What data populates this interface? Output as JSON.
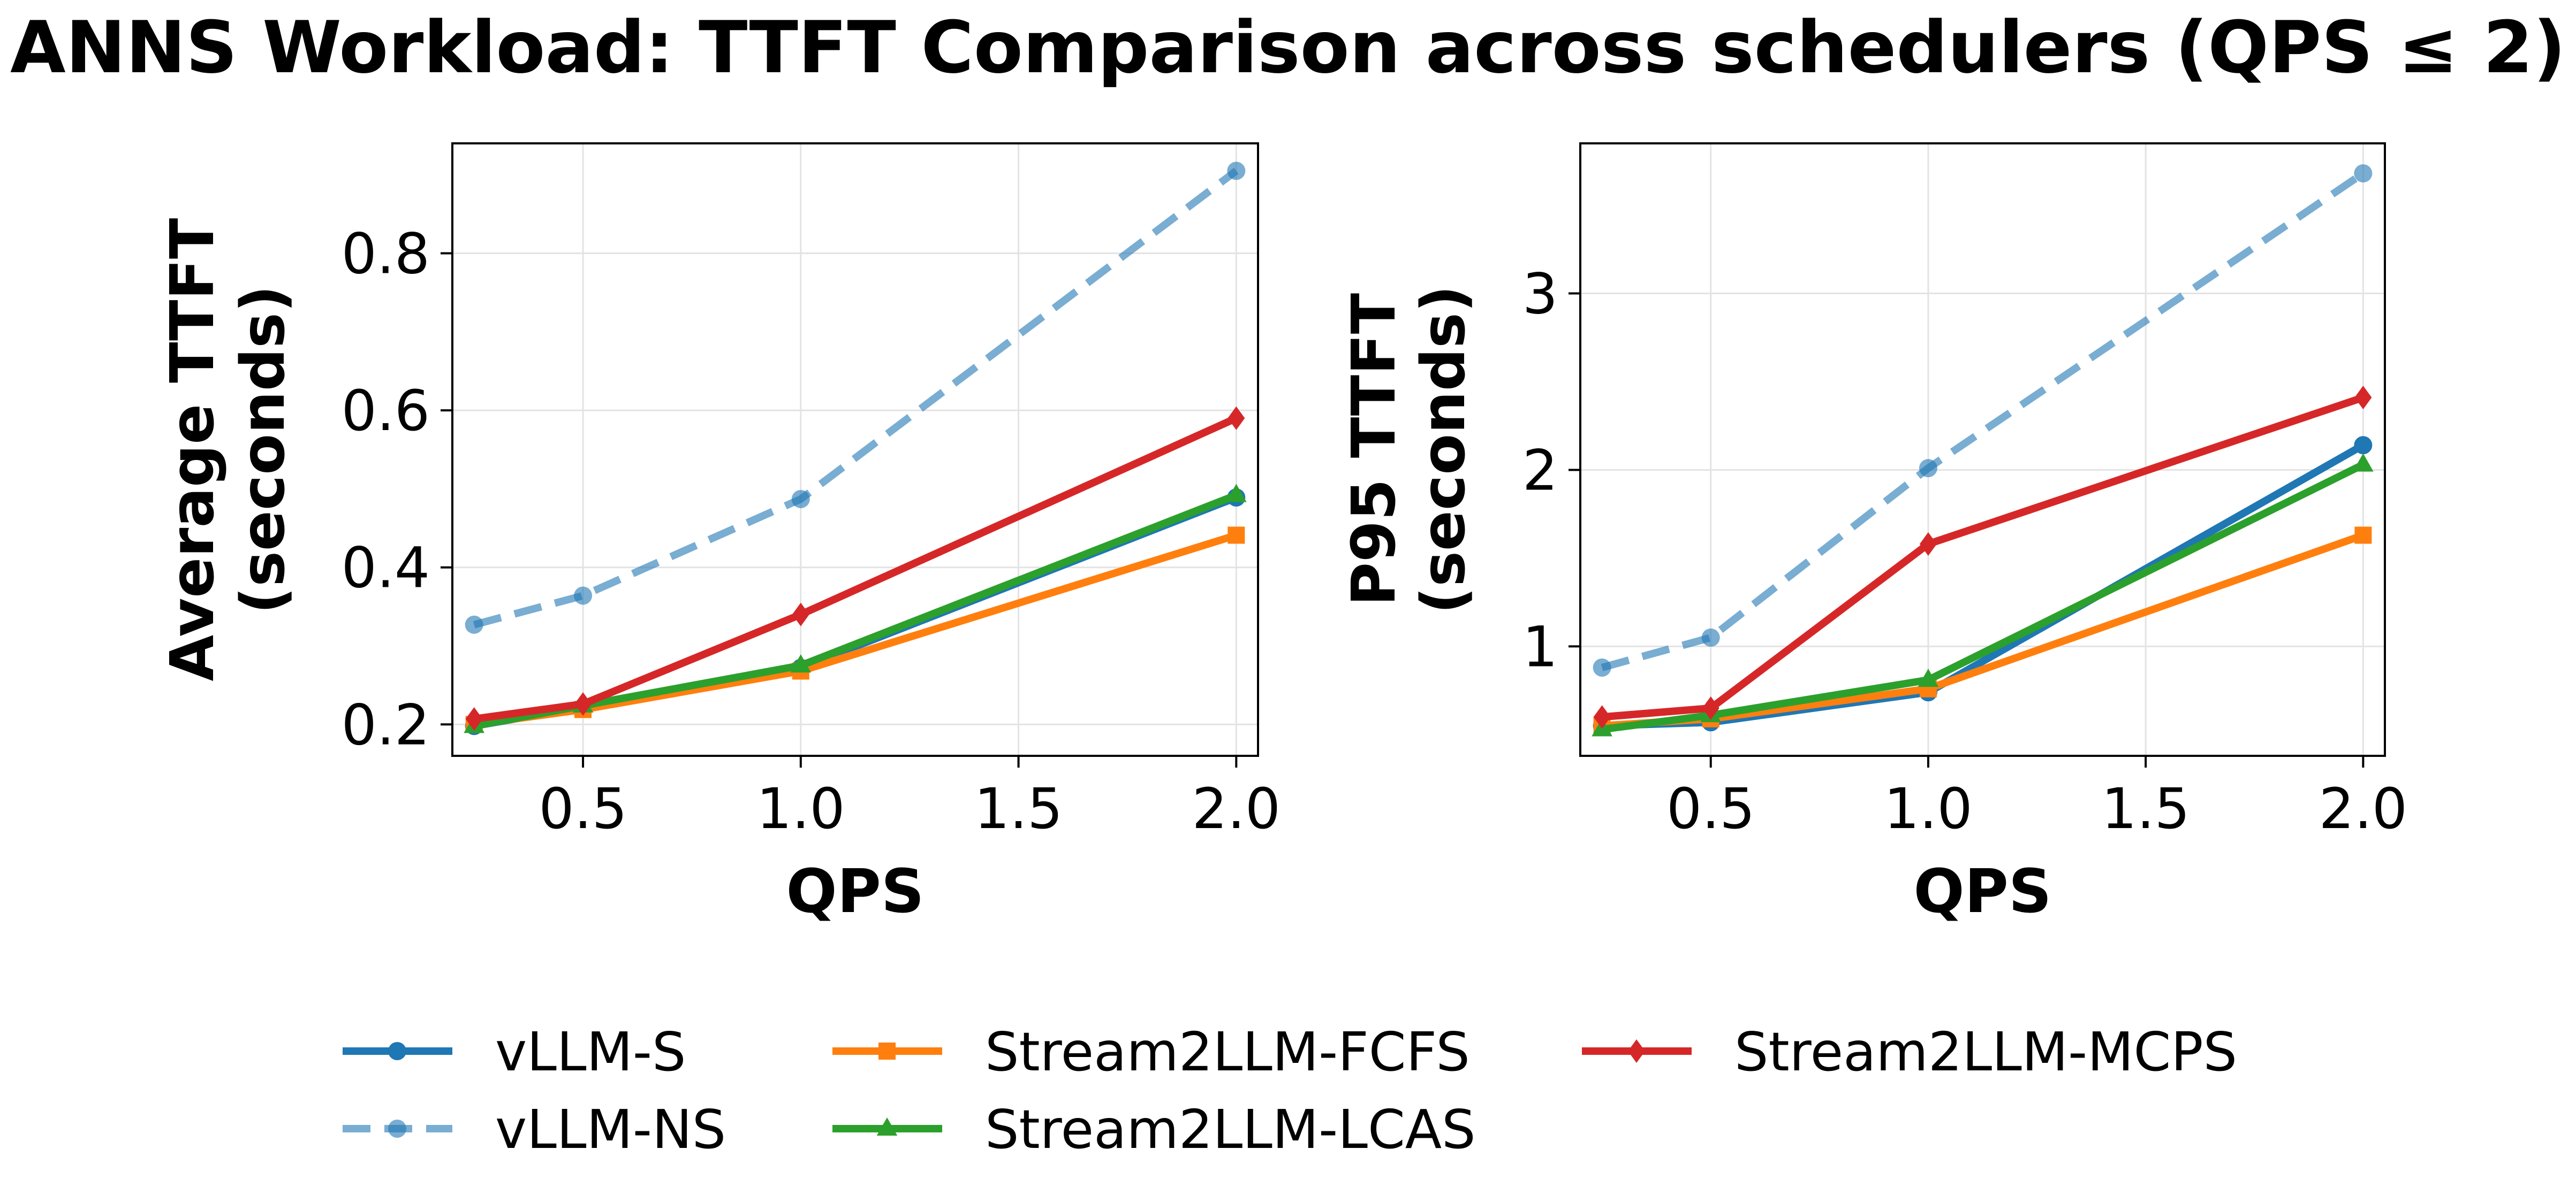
{
  "title": "ANNS Workload: TTFT Comparison across schedulers (QPS ≤ 2)",
  "styles": {
    "vLLM-S": {
      "color": "#1f77b4",
      "dash": "solid",
      "marker": "circle",
      "opacity": 1
    },
    "vLLM-NS": {
      "color": "#1f77b4",
      "dash": "dashed",
      "marker": "circle",
      "opacity": 0.6
    },
    "Stream2LLM-FCFS": {
      "color": "#ff7f0e",
      "dash": "solid",
      "marker": "square",
      "opacity": 1
    },
    "Stream2LLM-LCAS": {
      "color": "#2ca02c",
      "dash": "solid",
      "marker": "triangle",
      "opacity": 1
    },
    "Stream2LLM-MCPS": {
      "color": "#d62728",
      "dash": "solid",
      "marker": "diamond",
      "opacity": 1
    }
  },
  "legend": {
    "placement": "bottom-center",
    "order": [
      "vLLM-S",
      "vLLM-NS",
      "Stream2LLM-FCFS",
      "Stream2LLM-LCAS",
      "Stream2LLM-MCPS"
    ]
  },
  "chart_data": [
    {
      "type": "line",
      "xlabel": "QPS",
      "ylabel_lines": [
        "Average TTFT",
        "(seconds)"
      ],
      "xlim": [
        0.2,
        2.05
      ],
      "ylim": [
        0.16,
        0.94
      ],
      "xticks": [
        0.5,
        1.0,
        1.5,
        2.0
      ],
      "yticks": [
        0.2,
        0.4,
        0.6,
        0.8
      ],
      "xtick_labels": [
        "0.5",
        "1.0",
        "1.5",
        "2.0"
      ],
      "ytick_labels": [
        "0.2",
        "0.4",
        "0.6",
        "0.8"
      ],
      "grid": true,
      "x": [
        0.25,
        0.5,
        1.0,
        2.0
      ],
      "series": [
        {
          "name": "vLLM-NS",
          "values": [
            0.327,
            0.364,
            0.487,
            0.905
          ]
        },
        {
          "name": "vLLM-S",
          "values": [
            0.198,
            0.222,
            0.272,
            0.489
          ]
        },
        {
          "name": "Stream2LLM-FCFS",
          "values": [
            0.2,
            0.219,
            0.268,
            0.441
          ]
        },
        {
          "name": "Stream2LLM-LCAS",
          "values": [
            0.198,
            0.224,
            0.275,
            0.492
          ]
        },
        {
          "name": "Stream2LLM-MCPS",
          "values": [
            0.207,
            0.226,
            0.34,
            0.59
          ]
        }
      ]
    },
    {
      "type": "line",
      "xlabel": "QPS",
      "ylabel_lines": [
        "P95 TTFT",
        "(seconds)"
      ],
      "xlim": [
        0.2,
        2.05
      ],
      "ylim": [
        0.38,
        3.85
      ],
      "xticks": [
        0.5,
        1.0,
        1.5,
        2.0
      ],
      "yticks": [
        1,
        2,
        3
      ],
      "xtick_labels": [
        "0.5",
        "1.0",
        "1.5",
        "2.0"
      ],
      "ytick_labels": [
        "1",
        "2",
        "3"
      ],
      "grid": true,
      "x": [
        0.25,
        0.5,
        1.0,
        2.0
      ],
      "series": [
        {
          "name": "vLLM-NS",
          "values": [
            0.88,
            1.05,
            2.01,
            3.68
          ]
        },
        {
          "name": "vLLM-S",
          "values": [
            0.55,
            0.57,
            0.74,
            2.14
          ]
        },
        {
          "name": "Stream2LLM-FCFS",
          "values": [
            0.55,
            0.59,
            0.76,
            1.63
          ]
        },
        {
          "name": "Stream2LLM-LCAS",
          "values": [
            0.53,
            0.61,
            0.81,
            2.03
          ]
        },
        {
          "name": "Stream2LLM-MCPS",
          "values": [
            0.6,
            0.65,
            1.58,
            2.41
          ]
        }
      ]
    }
  ]
}
